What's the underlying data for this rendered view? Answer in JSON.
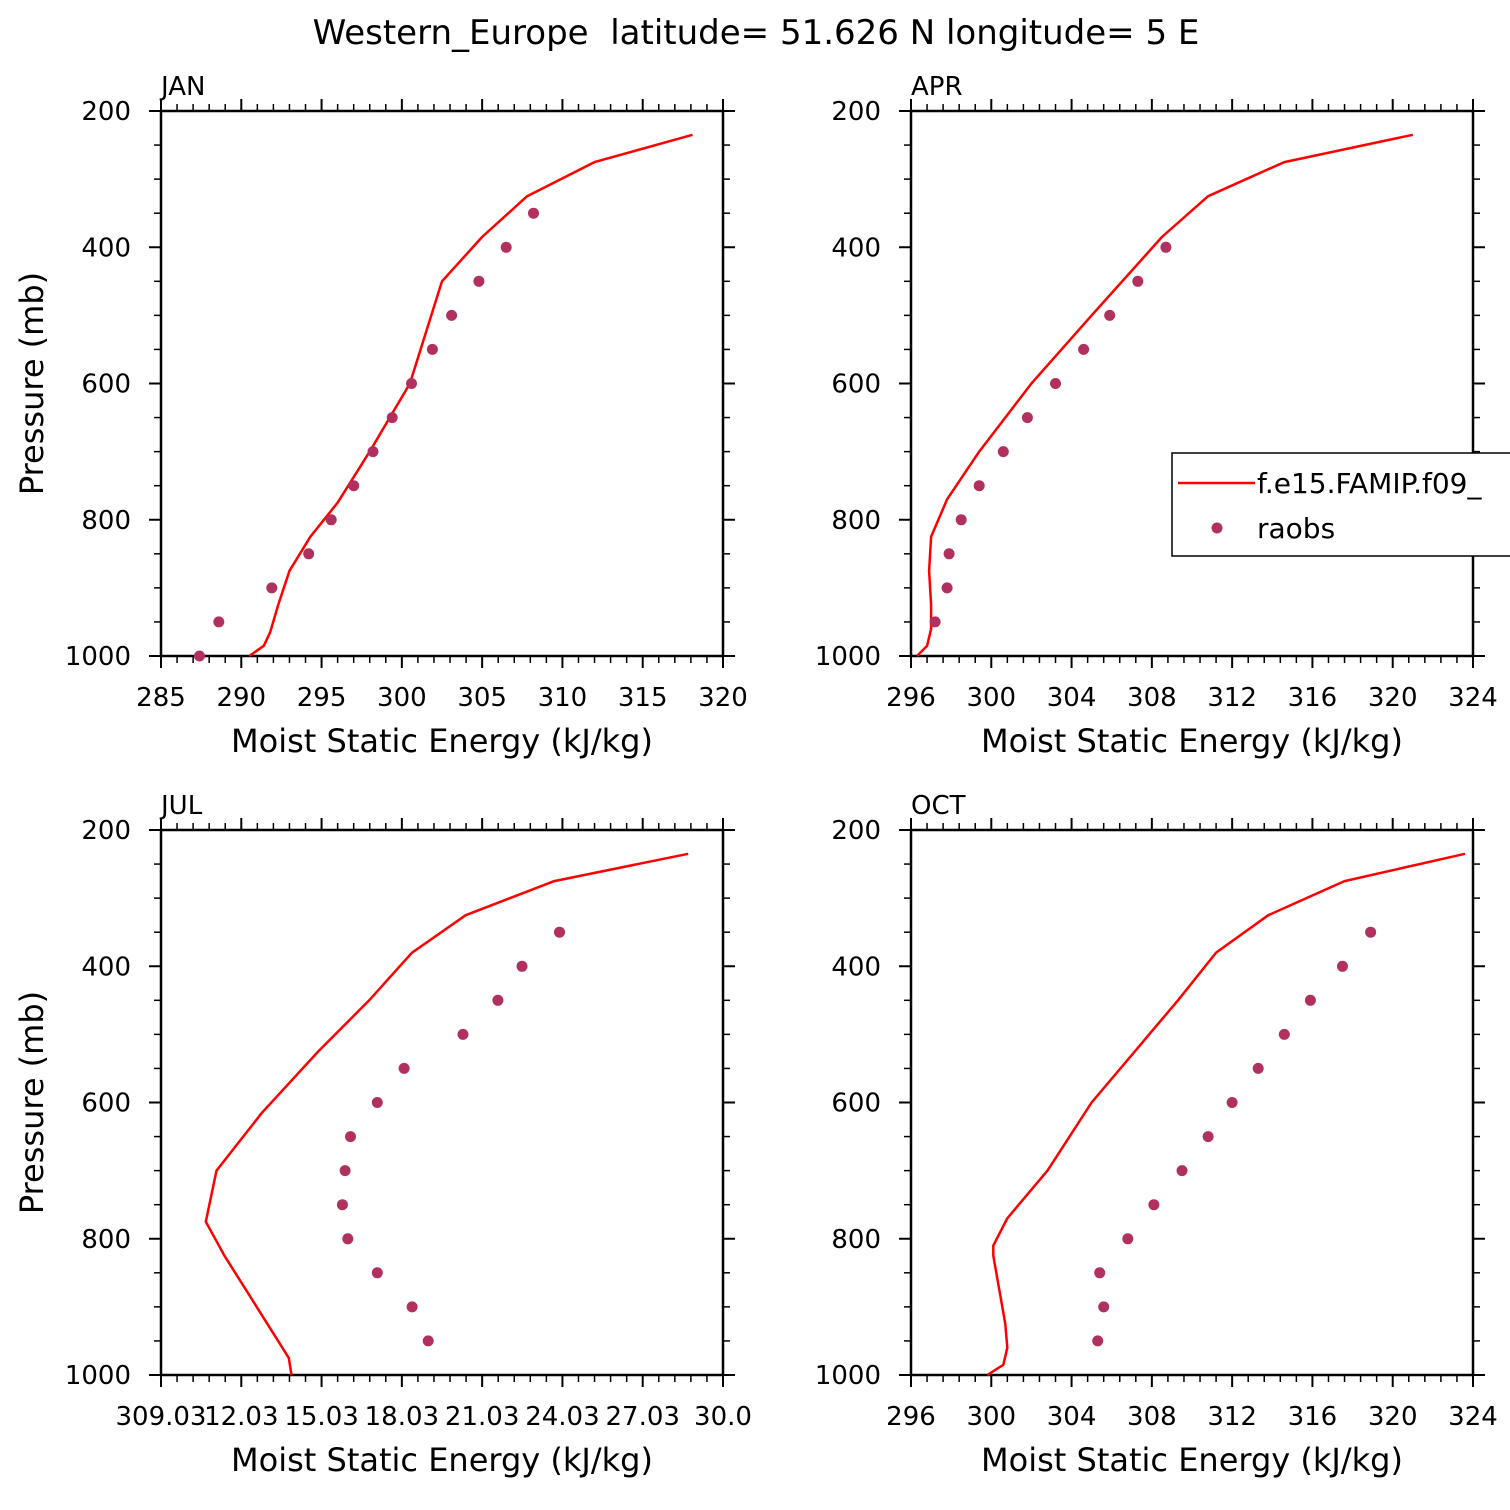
{
  "title": "Western_Europe  latitude= 51.626 N longitude= 5 E",
  "colors": {
    "model_line": "#ff0000",
    "raobs_marker": "#b03060",
    "axis": "#000000"
  },
  "legend": {
    "line_label": "f.e15.FAMIP.f09_",
    "marker_label": "raobs",
    "placement": "right of APR panel, clipped at figure edge"
  },
  "chart_data": [
    {
      "type": "line",
      "panel": "JAN",
      "xlabel": "Moist Static Energy (kJ/kg)",
      "ylabel": "Pressure (mb)",
      "xlim": [
        285,
        320
      ],
      "ylim": [
        1000,
        200
      ],
      "xticks": [
        285,
        290,
        295,
        300,
        305,
        310,
        315,
        320
      ],
      "xtick_labels": [
        "285",
        "290",
        "295",
        "300",
        "305",
        "310",
        "315",
        "320"
      ],
      "yticks": [
        200,
        400,
        600,
        800,
        1000
      ],
      "ytick_labels": [
        "200",
        "400",
        "600",
        "800",
        "1000"
      ],
      "series": [
        {
          "name": "f.e15.FAMIP.f09_",
          "kind": "line",
          "x": [
            290.5,
            291.4,
            291.8,
            292.3,
            293.0,
            294.3,
            296.0,
            298.0,
            300.5,
            302.5,
            305.0,
            307.8,
            312.0,
            318.1
          ],
          "y": [
            1000,
            985,
            965,
            925,
            875,
            825,
            775,
            700,
            600,
            450,
            385,
            325,
            275,
            235
          ]
        },
        {
          "name": "raobs",
          "kind": "scatter",
          "x": [
            287.4,
            288.6,
            291.9,
            294.2,
            295.6,
            297.0,
            298.2,
            299.4,
            300.6,
            301.9,
            303.1,
            304.8,
            306.5,
            308.2
          ],
          "y": [
            1000,
            950,
            900,
            850,
            800,
            750,
            700,
            650,
            600,
            550,
            500,
            450,
            400,
            350
          ]
        }
      ]
    },
    {
      "type": "line",
      "panel": "APR",
      "xlabel": "Moist Static Energy (kJ/kg)",
      "ylabel": "",
      "xlim": [
        296,
        324
      ],
      "ylim": [
        1000,
        200
      ],
      "xticks": [
        296,
        300,
        304,
        308,
        312,
        316,
        320,
        324
      ],
      "xtick_labels": [
        "296",
        "300",
        "304",
        "308",
        "312",
        "316",
        "320",
        "324"
      ],
      "yticks": [
        200,
        400,
        600,
        800,
        1000
      ],
      "ytick_labels": [
        "200",
        "400",
        "600",
        "800",
        "1000"
      ],
      "series": [
        {
          "name": "f.e15.FAMIP.f09_",
          "kind": "line",
          "x": [
            296.3,
            296.8,
            297.0,
            297.0,
            296.9,
            297.0,
            297.8,
            299.4,
            302.0,
            305.0,
            308.5,
            310.8,
            314.6,
            321.0
          ],
          "y": [
            1000,
            985,
            960,
            925,
            875,
            825,
            770,
            700,
            600,
            500,
            385,
            325,
            275,
            235
          ]
        },
        {
          "name": "raobs",
          "kind": "scatter",
          "x": [
            297.2,
            297.8,
            297.9,
            298.5,
            299.4,
            300.6,
            301.8,
            303.2,
            304.6,
            305.9,
            307.3,
            308.7
          ],
          "y": [
            950,
            900,
            850,
            800,
            750,
            700,
            650,
            600,
            550,
            500,
            450,
            400
          ]
        }
      ]
    },
    {
      "type": "line",
      "panel": "JUL",
      "xlabel": "Moist Static Energy (kJ/kg)",
      "ylabel": "Pressure (mb)",
      "xlim": [
        309.03,
        330.0
      ],
      "ylim": [
        1000,
        200
      ],
      "xticks": [
        309.03,
        312.03,
        315.03,
        318.03,
        321.03,
        324.03,
        327.03,
        330.0
      ],
      "xtick_labels": [
        "309.03",
        "12.03",
        "15.03",
        "18.03",
        "21.03",
        "24.03",
        "27.03",
        "30.0"
      ],
      "yticks": [
        200,
        400,
        600,
        800,
        1000
      ],
      "ytick_labels": [
        "200",
        "400",
        "600",
        "800",
        "1000"
      ],
      "series": [
        {
          "name": "f.e15.FAMIP.f09_",
          "kind": "line",
          "x": [
            313.9,
            313.8,
            313.4,
            312.6,
            311.4,
            310.7,
            311.1,
            312.8,
            314.9,
            316.8,
            318.4,
            320.4,
            323.7,
            328.7
          ],
          "y": [
            1000,
            975,
            950,
            900,
            825,
            775,
            700,
            615,
            525,
            450,
            380,
            325,
            275,
            235
          ]
        },
        {
          "name": "raobs",
          "kind": "scatter",
          "x": [
            319.0,
            318.4,
            317.1,
            316.0,
            315.8,
            315.9,
            316.1,
            317.1,
            318.1,
            320.3,
            321.6,
            322.5,
            323.9
          ],
          "y": [
            950,
            900,
            850,
            800,
            750,
            700,
            650,
            600,
            550,
            500,
            450,
            400,
            350
          ]
        }
      ]
    },
    {
      "type": "line",
      "panel": "OCT",
      "xlabel": "Moist Static Energy (kJ/kg)",
      "ylabel": "",
      "xlim": [
        296,
        324
      ],
      "ylim": [
        1000,
        200
      ],
      "xticks": [
        296,
        300,
        304,
        308,
        312,
        316,
        320,
        324
      ],
      "xtick_labels": [
        "296",
        "300",
        "304",
        "308",
        "312",
        "316",
        "320",
        "324"
      ],
      "yticks": [
        200,
        400,
        600,
        800,
        1000
      ],
      "ytick_labels": [
        "200",
        "400",
        "600",
        "800",
        "1000"
      ],
      "series": [
        {
          "name": "f.e15.FAMIP.f09_",
          "kind": "line",
          "x": [
            299.8,
            300.6,
            300.8,
            300.7,
            300.4,
            300.1,
            300.1,
            300.8,
            302.8,
            305.0,
            309.3,
            311.2,
            313.8,
            317.6,
            323.6
          ],
          "y": [
            1000,
            985,
            960,
            925,
            875,
            825,
            810,
            770,
            700,
            600,
            450,
            380,
            325,
            275,
            235
          ]
        },
        {
          "name": "raobs",
          "kind": "scatter",
          "x": [
            305.3,
            305.6,
            305.4,
            306.8,
            308.1,
            309.5,
            310.8,
            312.0,
            313.3,
            314.6,
            315.9,
            317.5,
            318.9
          ],
          "y": [
            950,
            900,
            850,
            800,
            750,
            700,
            650,
            600,
            550,
            500,
            450,
            400,
            350
          ]
        }
      ]
    }
  ]
}
